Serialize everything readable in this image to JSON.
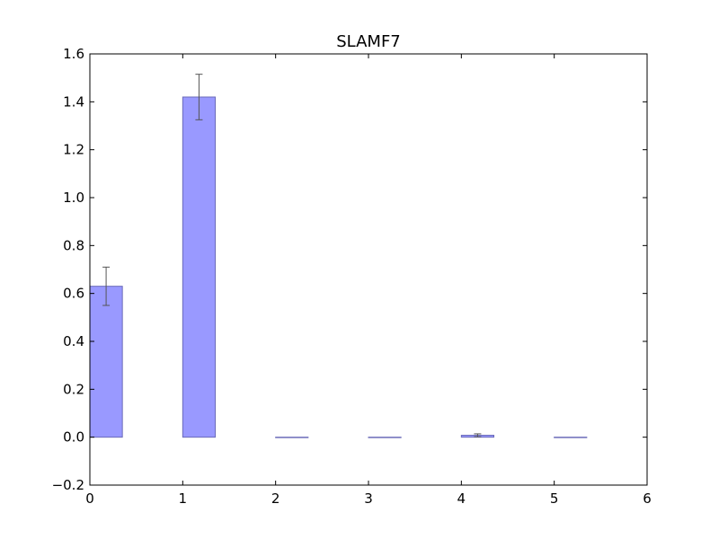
{
  "chart_data": {
    "type": "bar",
    "title": "SLAMF7",
    "xlabel": "",
    "ylabel": "",
    "xlim": [
      0,
      6
    ],
    "ylim": [
      -0.2,
      1.6
    ],
    "xticks": [
      "0",
      "1",
      "2",
      "3",
      "4",
      "5",
      "6"
    ],
    "yticks": [
      "−0.2",
      "0.0",
      "0.2",
      "0.4",
      "0.6",
      "0.8",
      "1.0",
      "1.2",
      "1.4",
      "1.6"
    ],
    "bar_color": "#9999ff",
    "bar_edge_color": "#6a6ab8",
    "error_color": "#555555",
    "grid": false,
    "bars": [
      {
        "x": 0,
        "value": 0.63,
        "error": 0.08
      },
      {
        "x": 1,
        "value": 1.42,
        "error": 0.095
      },
      {
        "x": 2,
        "value": 0.0,
        "error": 0.0
      },
      {
        "x": 3,
        "value": 0.0,
        "error": 0.0
      },
      {
        "x": 4,
        "value": 0.008,
        "error": 0.006
      },
      {
        "x": 5,
        "value": 0.0,
        "error": 0.0
      }
    ]
  }
}
